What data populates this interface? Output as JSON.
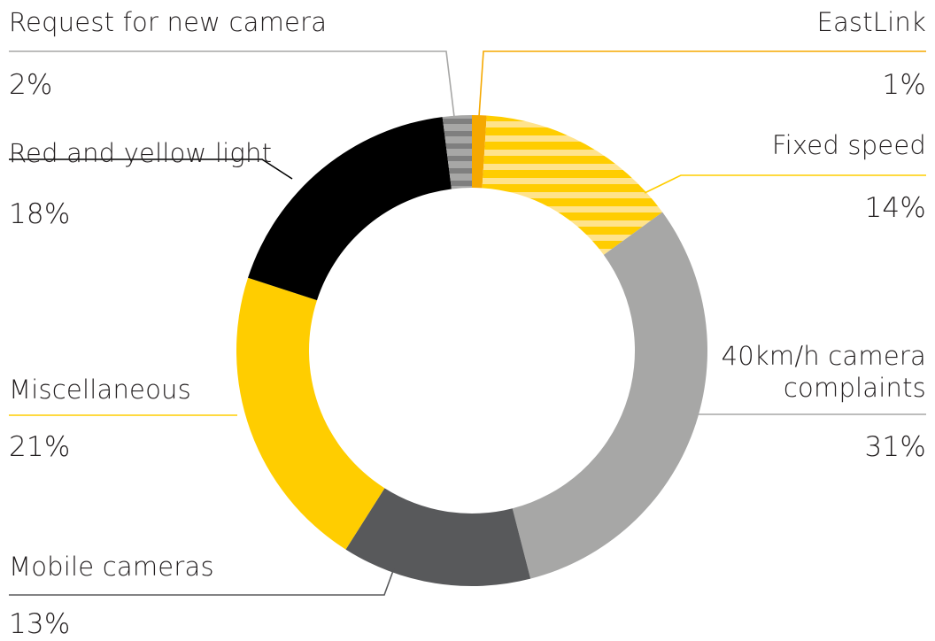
{
  "chart_data": {
    "type": "donut",
    "title": "",
    "slices": [
      {
        "label": "EastLink",
        "percent_label": "1%",
        "value": 1,
        "color": "#F5A800",
        "pattern": "solid"
      },
      {
        "label": "Fixed speed",
        "percent_label": "14%",
        "value": 14,
        "color": "#FFCD00",
        "pattern": "stripes",
        "stripe_color": "#FFE38C"
      },
      {
        "label": "40km/h camera complaints",
        "percent_label": "31%",
        "value": 31,
        "color": "#A7A7A6",
        "pattern": "solid"
      },
      {
        "label": "Mobile cameras",
        "percent_label": "13%",
        "value": 13,
        "color": "#58595B",
        "pattern": "solid"
      },
      {
        "label": "Miscellaneous",
        "percent_label": "21%",
        "value": 21,
        "color": "#FFCD00",
        "pattern": "solid"
      },
      {
        "label": "Red and yellow light",
        "percent_label": "18%",
        "value": 18,
        "color": "#000000",
        "pattern": "solid"
      },
      {
        "label": "Request for new camera",
        "percent_label": "2%",
        "value": 2,
        "color": "#A7A7A6",
        "pattern": "stripes",
        "stripe_color": "#7F7F7F"
      }
    ]
  }
}
